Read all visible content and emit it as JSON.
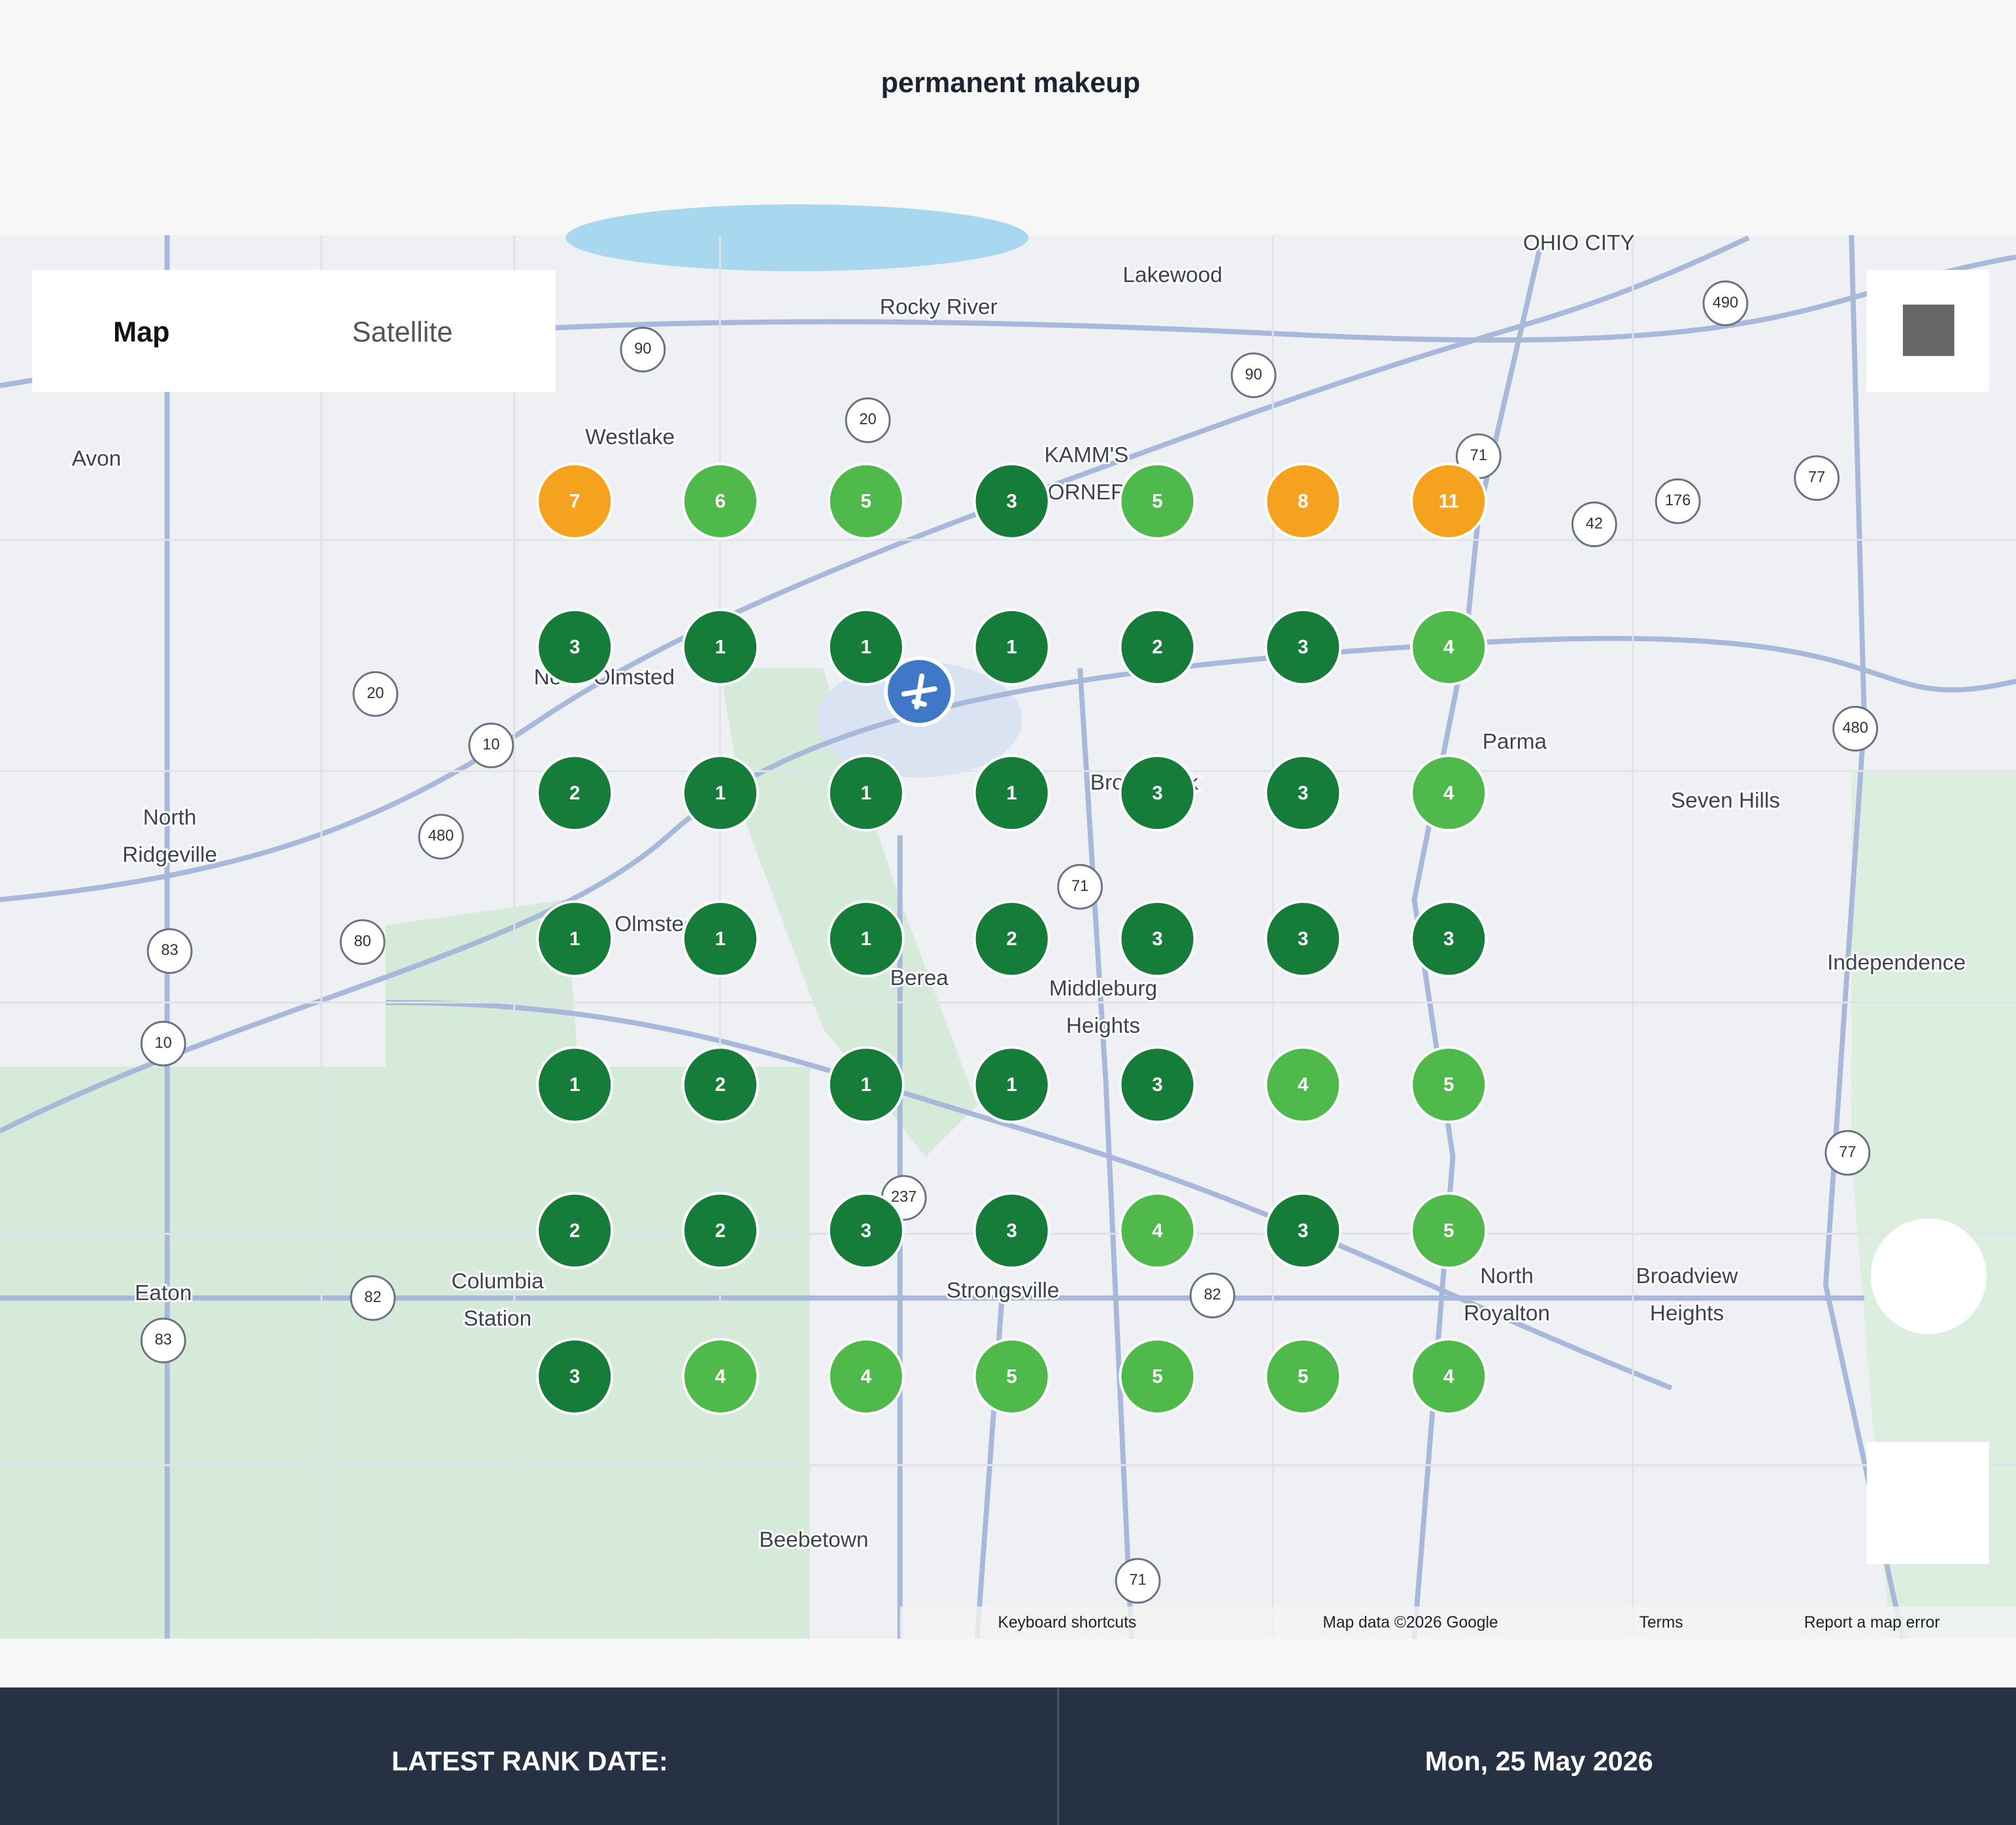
{
  "title": "permanent makeup",
  "map": {
    "view_buttons": [
      "Map",
      "Satellite"
    ],
    "places": [
      {
        "lines": [
          "Lakewood"
        ]
      },
      {
        "lines": [
          "Rocky River"
        ]
      },
      {
        "lines": [
          "Westlake"
        ]
      },
      {
        "lines": [
          "Avon"
        ]
      },
      {
        "lines": [
          "OHIO CITY"
        ]
      },
      {
        "lines": [
          "KAMM'S",
          "CORNERS"
        ]
      },
      {
        "lines": [
          "North Olmsted"
        ]
      },
      {
        "lines": [
          "Parma"
        ]
      },
      {
        "lines": [
          "Seven Hills"
        ]
      },
      {
        "lines": [
          "North",
          "Ridgeville"
        ]
      },
      {
        "lines": [
          "Brook Park"
        ]
      },
      {
        "lines": [
          "Olmsted Falls"
        ]
      },
      {
        "lines": [
          "Berea"
        ]
      },
      {
        "lines": [
          "Middleburg",
          "Heights"
        ]
      },
      {
        "lines": [
          "Independence"
        ]
      },
      {
        "lines": [
          "Eaton"
        ]
      },
      {
        "lines": [
          "Columbia",
          "Station"
        ]
      },
      {
        "lines": [
          "Strongsville"
        ]
      },
      {
        "lines": [
          "North",
          "Royalton"
        ]
      },
      {
        "lines": [
          "Broadview",
          "Heights"
        ]
      },
      {
        "lines": [
          "Beebetown"
        ]
      }
    ],
    "route_shields": [
      "90",
      "90",
      "490",
      "20",
      "71",
      "77",
      "176",
      "42",
      "20",
      "10",
      "480",
      "480",
      "71",
      "83",
      "80",
      "10",
      "77",
      "237",
      "82",
      "82",
      "83",
      "71"
    ],
    "footer_links": [
      "Keyboard shortcuts",
      "Map data ©2026 Google",
      "Terms",
      "Report a map error"
    ]
  },
  "rank_grid": {
    "rows": [
      [
        7,
        6,
        5,
        3,
        5,
        8,
        11
      ],
      [
        3,
        1,
        1,
        1,
        2,
        3,
        4
      ],
      [
        2,
        1,
        1,
        1,
        3,
        3,
        4
      ],
      [
        1,
        1,
        1,
        2,
        3,
        3,
        3
      ],
      [
        1,
        2,
        1,
        1,
        3,
        4,
        5
      ],
      [
        2,
        2,
        3,
        3,
        4,
        3,
        5
      ],
      [
        3,
        4,
        4,
        5,
        5,
        5,
        4
      ]
    ],
    "colors": [
      "#167c3a",
      "#4fba4b",
      "#f5a31f"
    ]
  },
  "footer": {
    "label": "LATEST RANK DATE:",
    "value": "Mon, 25 May 2026"
  }
}
